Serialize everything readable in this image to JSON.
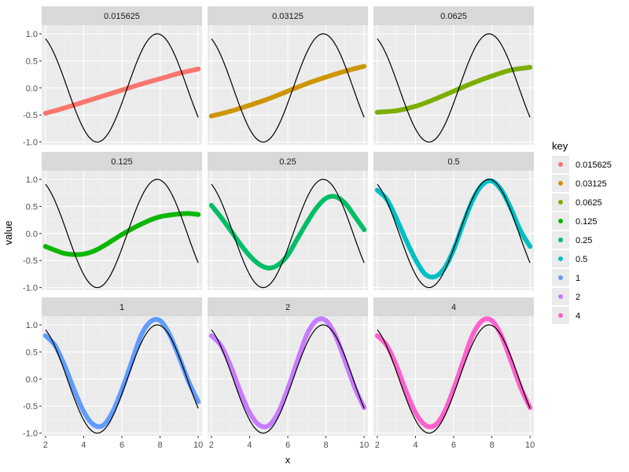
{
  "chart_data": {
    "type": "scatter",
    "xlabel": "x",
    "ylabel": "value",
    "xlim": [
      1.8,
      10.2
    ],
    "ylim": [
      -1.05,
      1.16
    ],
    "x_ticks": [
      2,
      4,
      6,
      8,
      10
    ],
    "y_ticks": [
      -1.0,
      -0.5,
      0.0,
      0.5,
      1.0
    ],
    "x_tick_labels": [
      "2",
      "4",
      "6",
      "8",
      "10"
    ],
    "y_tick_labels": [
      "-1.0",
      "-0.5",
      "0.0",
      "0.5",
      "1.0"
    ],
    "grid": true,
    "facet_layout": "3x3",
    "reference_line": {
      "description": "sin(x)",
      "x_range": [
        2,
        10
      ],
      "color": "#000000"
    },
    "legend": {
      "title": "key",
      "position": "right",
      "entries": [
        {
          "label": "0.015625",
          "color": "#F8766D"
        },
        {
          "label": "0.03125",
          "color": "#CD9600"
        },
        {
          "label": "0.0625",
          "color": "#7CAE00"
        },
        {
          "label": "0.125",
          "color": "#0CB702"
        },
        {
          "label": "0.25",
          "color": "#00BE67"
        },
        {
          "label": "0.5",
          "color": "#00BFC4"
        },
        {
          "label": "1",
          "color": "#619CFF"
        },
        {
          "label": "2",
          "color": "#C77CFF"
        },
        {
          "label": "4",
          "color": "#FF61CC"
        }
      ]
    },
    "panels": [
      {
        "strip": "0.015625",
        "color": "#F8766D",
        "x": [
          2,
          3,
          4,
          5,
          6,
          7,
          8,
          9,
          10
        ],
        "y": [
          -0.47,
          -0.37,
          -0.26,
          -0.15,
          -0.04,
          0.07,
          0.17,
          0.27,
          0.35
        ]
      },
      {
        "strip": "0.03125",
        "color": "#CD9600",
        "x": [
          2,
          3,
          4,
          5,
          6,
          7,
          8,
          9,
          10
        ],
        "y": [
          -0.52,
          -0.43,
          -0.32,
          -0.2,
          -0.06,
          0.08,
          0.2,
          0.31,
          0.4
        ]
      },
      {
        "strip": "0.0625",
        "color": "#7CAE00",
        "x": [
          2,
          3,
          4,
          5,
          6,
          7,
          8,
          9,
          10
        ],
        "y": [
          -0.45,
          -0.42,
          -0.34,
          -0.21,
          -0.06,
          0.09,
          0.22,
          0.33,
          0.38
        ]
      },
      {
        "strip": "0.125",
        "color": "#0CB702",
        "x": [
          2,
          2.5,
          3,
          3.5,
          4,
          4.5,
          5,
          5.5,
          6,
          6.5,
          7,
          7.5,
          8,
          8.5,
          9,
          9.5,
          10
        ],
        "y": [
          -0.24,
          -0.31,
          -0.37,
          -0.39,
          -0.38,
          -0.33,
          -0.24,
          -0.13,
          -0.02,
          0.08,
          0.17,
          0.25,
          0.31,
          0.34,
          0.36,
          0.37,
          0.35
        ]
      },
      {
        "strip": "0.25",
        "color": "#00BE67",
        "x": [
          2,
          2.5,
          3,
          3.5,
          4,
          4.5,
          5,
          5.5,
          6,
          6.5,
          7,
          7.5,
          8,
          8.5,
          9,
          9.5,
          10
        ],
        "y": [
          0.52,
          0.3,
          0.06,
          -0.19,
          -0.41,
          -0.57,
          -0.64,
          -0.58,
          -0.4,
          -0.1,
          0.2,
          0.47,
          0.65,
          0.68,
          0.56,
          0.32,
          0.07
        ]
      },
      {
        "strip": "0.5",
        "color": "#00BFC4",
        "x": [
          2,
          2.5,
          3,
          3.5,
          4,
          4.5,
          5,
          5.5,
          6,
          6.5,
          7,
          7.5,
          8,
          8.5,
          9,
          9.5,
          10
        ],
        "y": [
          0.8,
          0.63,
          0.28,
          -0.12,
          -0.48,
          -0.75,
          -0.8,
          -0.65,
          -0.3,
          0.18,
          0.62,
          0.9,
          0.97,
          0.8,
          0.46,
          0.05,
          -0.24
        ]
      },
      {
        "strip": "1",
        "color": "#619CFF",
        "x": [
          2,
          2.5,
          3,
          3.5,
          4,
          4.5,
          5,
          5.5,
          6,
          6.5,
          7,
          7.5,
          8,
          8.5,
          9,
          9.5,
          10
        ],
        "y": [
          0.8,
          0.62,
          0.25,
          -0.2,
          -0.6,
          -0.84,
          -0.86,
          -0.62,
          -0.2,
          0.3,
          0.8,
          1.06,
          1.08,
          0.82,
          0.4,
          -0.05,
          -0.42
        ]
      },
      {
        "strip": "2",
        "color": "#C77CFF",
        "x": [
          2,
          2.5,
          3,
          3.5,
          4,
          4.5,
          5,
          5.5,
          6,
          6.5,
          7,
          7.5,
          8,
          8.5,
          9,
          9.5,
          10
        ],
        "y": [
          0.8,
          0.62,
          0.25,
          -0.22,
          -0.62,
          -0.85,
          -0.86,
          -0.62,
          -0.18,
          0.33,
          0.82,
          1.08,
          1.08,
          0.8,
          0.33,
          -0.15,
          -0.53
        ]
      },
      {
        "strip": "4",
        "color": "#FF61CC",
        "x": [
          2,
          2.5,
          3,
          3.5,
          4,
          4.5,
          5,
          5.5,
          6,
          6.5,
          7,
          7.5,
          8,
          8.5,
          9,
          9.5,
          10
        ],
        "y": [
          0.8,
          0.62,
          0.25,
          -0.22,
          -0.62,
          -0.85,
          -0.86,
          -0.62,
          -0.18,
          0.33,
          0.82,
          1.08,
          1.08,
          0.8,
          0.33,
          -0.15,
          -0.53
        ]
      }
    ]
  }
}
